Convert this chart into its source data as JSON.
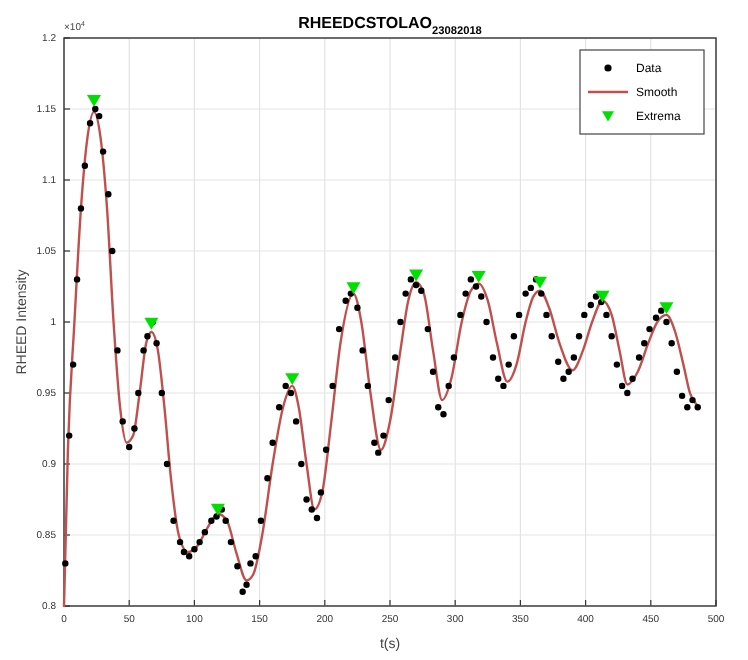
{
  "chart_data": {
    "type": "line",
    "title": "RHEEDCSTOLAO$_{23082018}$",
    "xlabel": "t(s)",
    "ylabel": "RHEED Intensity",
    "annotations": [
      "×10$^{4}$"
    ],
    "xlim": [
      0,
      500
    ],
    "xticks": [
      0,
      50,
      100,
      150,
      200,
      250,
      300,
      350,
      400,
      450,
      500
    ],
    "ylim": [
      0.8,
      1.2
    ],
    "yticks": [
      0.8,
      0.85,
      0.9,
      0.95,
      1,
      1.05,
      1.1,
      1.15,
      1.2
    ],
    "grid": true,
    "legend": "top right",
    "series": [
      {
        "name": "Data",
        "type": "scatter",
        "marker": "circle",
        "color": "#000000",
        "x": [
          1,
          4,
          7,
          10,
          13,
          16,
          20,
          24,
          27,
          30,
          34,
          37,
          41,
          45,
          50,
          54,
          57,
          61,
          64,
          68,
          71,
          75,
          79,
          84,
          89,
          92,
          96,
          100,
          104,
          108,
          113,
          117,
          121,
          124,
          128,
          133,
          137,
          140,
          143,
          147,
          151,
          156,
          160,
          165,
          170,
          174,
          178,
          182,
          186,
          190,
          194,
          197,
          201,
          206,
          211,
          216,
          220,
          225,
          229,
          233,
          238,
          241,
          245,
          249,
          254,
          258,
          262,
          266,
          270,
          274,
          279,
          283,
          287,
          291,
          295,
          299,
          304,
          308,
          312,
          316,
          320,
          324,
          329,
          333,
          337,
          341,
          345,
          349,
          354,
          358,
          362,
          366,
          370,
          374,
          379,
          383,
          387,
          391,
          395,
          399,
          404,
          408,
          412,
          416,
          420,
          424,
          428,
          432,
          436,
          441,
          445,
          449,
          454,
          458,
          462,
          466,
          470,
          474,
          478,
          482,
          486
        ],
        "values": [
          0.83,
          0.92,
          0.97,
          1.03,
          1.08,
          1.11,
          1.14,
          1.15,
          1.145,
          1.12,
          1.09,
          1.05,
          0.98,
          0.93,
          0.912,
          0.925,
          0.95,
          0.98,
          0.99,
          1.0,
          0.985,
          0.95,
          0.9,
          0.86,
          0.845,
          0.838,
          0.835,
          0.84,
          0.845,
          0.852,
          0.86,
          0.863,
          0.868,
          0.86,
          0.845,
          0.828,
          0.81,
          0.815,
          0.83,
          0.835,
          0.86,
          0.89,
          0.915,
          0.94,
          0.955,
          0.95,
          0.93,
          0.9,
          0.875,
          0.868,
          0.862,
          0.88,
          0.91,
          0.955,
          0.995,
          1.015,
          1.02,
          1.01,
          0.98,
          0.955,
          0.915,
          0.908,
          0.92,
          0.945,
          0.975,
          1.0,
          1.02,
          1.03,
          1.026,
          1.022,
          0.995,
          0.965,
          0.94,
          0.935,
          0.955,
          0.975,
          1.005,
          1.02,
          1.03,
          1.025,
          1.018,
          1.0,
          0.975,
          0.96,
          0.955,
          0.97,
          0.99,
          1.005,
          1.02,
          1.024,
          1.03,
          1.02,
          1.005,
          0.99,
          0.972,
          0.96,
          0.965,
          0.975,
          0.99,
          1.005,
          1.012,
          1.018,
          1.014,
          1.005,
          0.99,
          0.97,
          0.955,
          0.95,
          0.96,
          0.975,
          0.985,
          0.995,
          1.003,
          1.008,
          1.0,
          0.985,
          0.965,
          0.948,
          0.94,
          0.945,
          0.94
        ]
      },
      {
        "name": "Smooth",
        "color": "#c0504d",
        "x": [
          0,
          3,
          8,
          13,
          18,
          23,
          28,
          33,
          38,
          43,
          48,
          53,
          58,
          63,
          67,
          72,
          77,
          82,
          88,
          95,
          102,
          110,
          118,
          125,
          132,
          140,
          145,
          152,
          160,
          168,
          175,
          180,
          186,
          192,
          198,
          205,
          212,
          222,
          228,
          235,
          243,
          250,
          258,
          264,
          270,
          276,
          283,
          290,
          297,
          305,
          312,
          318,
          325,
          332,
          340,
          347,
          354,
          360,
          365,
          372,
          380,
          390,
          398,
          405,
          413,
          420,
          426,
          432,
          440,
          448,
          455,
          462,
          468,
          475,
          480,
          485
        ],
        "values": [
          0.8,
          0.91,
          1.0,
          1.08,
          1.13,
          1.148,
          1.13,
          1.08,
          1.0,
          0.94,
          0.915,
          0.92,
          0.95,
          0.985,
          0.993,
          0.98,
          0.94,
          0.89,
          0.85,
          0.838,
          0.842,
          0.855,
          0.865,
          0.86,
          0.838,
          0.818,
          0.822,
          0.85,
          0.9,
          0.94,
          0.955,
          0.94,
          0.9,
          0.868,
          0.88,
          0.93,
          0.985,
          1.02,
          1.0,
          0.95,
          0.91,
          0.93,
          0.98,
          1.015,
          1.028,
          1.02,
          0.98,
          0.945,
          0.96,
          1.0,
          1.022,
          1.027,
          1.015,
          0.985,
          0.958,
          0.97,
          1.0,
          1.018,
          1.022,
          1.01,
          0.985,
          0.966,
          0.98,
          1.0,
          1.015,
          1.005,
          0.98,
          0.956,
          0.965,
          0.985,
          1.0,
          1.005,
          0.995,
          0.97,
          0.95,
          0.942
        ]
      },
      {
        "name": "Extrema",
        "type": "scatter",
        "marker": "triangle",
        "color": "#00e000",
        "x": [
          23,
          67,
          118,
          175,
          222,
          270,
          318,
          365,
          413,
          462
        ],
        "values": [
          1.156,
          0.999,
          0.868,
          0.96,
          1.024,
          1.033,
          1.032,
          1.028,
          1.018,
          1.01
        ]
      }
    ]
  }
}
